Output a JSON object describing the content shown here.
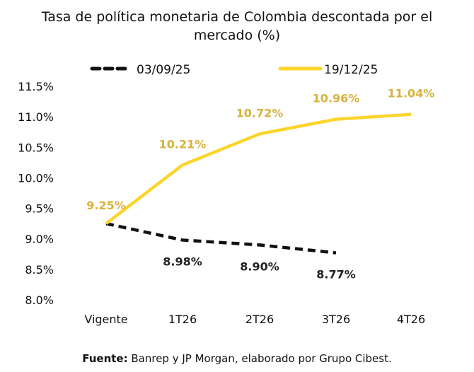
{
  "chart_data": {
    "type": "line",
    "title": "Tasa de política monetaria de Colombia descontada por el mercado (%)",
    "title_lines": [
      "Tasa de política monetaria de Colombia descontada por el",
      "mercado (%)"
    ],
    "categories": [
      "Vigente",
      "1T26",
      "2T26",
      "3T26",
      "4T26"
    ],
    "ylim": [
      8.0,
      11.5
    ],
    "yticks": [
      "8.0%",
      "8.5%",
      "9.0%",
      "9.5%",
      "10.0%",
      "10.5%",
      "11.0%",
      "11.5%"
    ],
    "grid": false,
    "legend_placement": "top",
    "series": [
      {
        "name": "03/09/25",
        "style": "dashed",
        "color": "#111111",
        "label_color": "#222222",
        "values": [
          9.25,
          8.98,
          8.9,
          8.77,
          null
        ],
        "labels": [
          "",
          "8.98%",
          "8.90%",
          "8.77%",
          ""
        ]
      },
      {
        "name": "19/12/25",
        "style": "solid",
        "color": "#FBD52C",
        "label_color": "#D8B23C",
        "values": [
          9.25,
          10.21,
          10.72,
          10.96,
          11.04
        ],
        "labels": [
          "9.25%",
          "10.21%",
          "10.72%",
          "10.96%",
          "11.04%"
        ]
      }
    ]
  },
  "source": {
    "label": "Fuente:",
    "text": " Banrep y JP Morgan, elaborado por Grupo Cibest."
  }
}
